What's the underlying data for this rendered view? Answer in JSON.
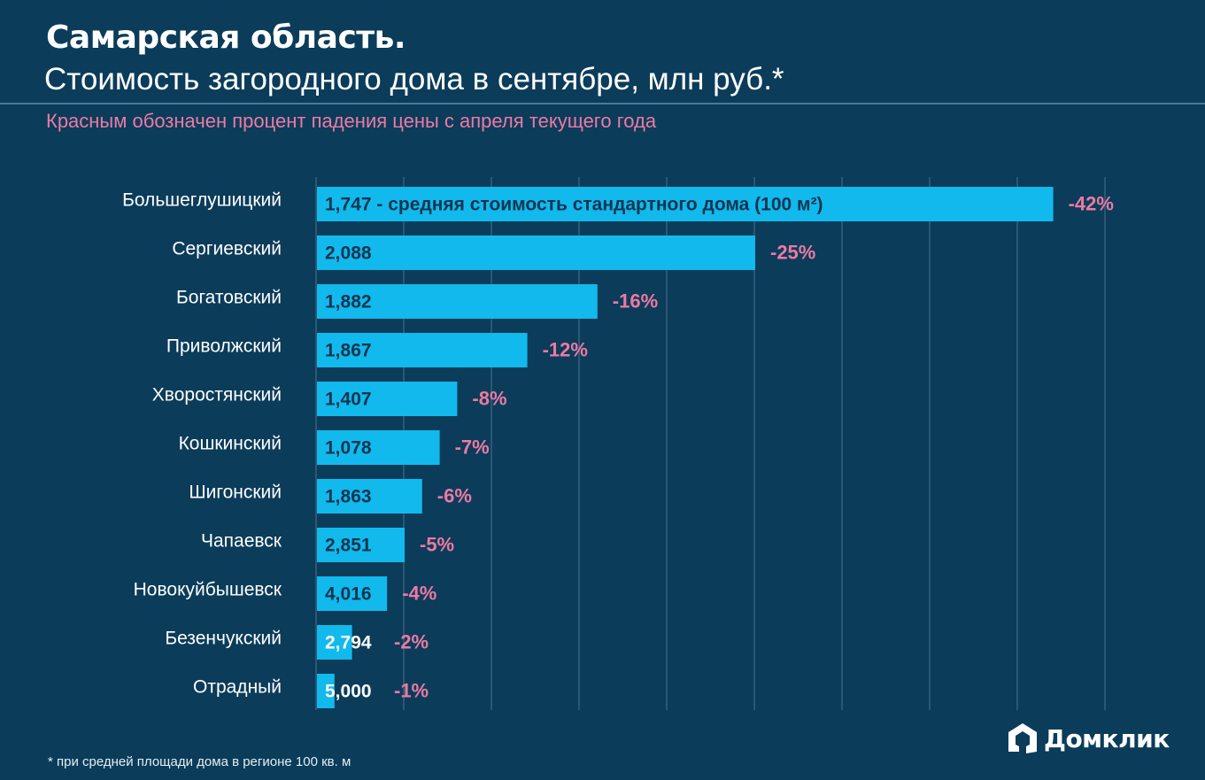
{
  "header": {
    "title_bold": "Самарская область.",
    "title_main": "Стоимость загородного дома в сентябре, млн руб.*",
    "subtitle": "Красным обозначен процент падения цены с апреля текущего года"
  },
  "footnote": "* при средней площади дома в регионе 100 кв. м",
  "logo": {
    "icon": "house-icon",
    "text": "Домклик"
  },
  "colors": {
    "background": "#0b3c5a",
    "bar": "#12b9ec",
    "percent_label": "#ec7aa3",
    "gridline": "#3f6a86"
  },
  "chart_data": {
    "type": "bar",
    "orientation": "horizontal",
    "title": "Стоимость загородного дома в сентябре, млн руб.*",
    "subtitle": "Красным обозначен процент падения цены с апреля текущего года",
    "xlabel": "",
    "ylabel": "",
    "xlim": [
      0,
      45
    ],
    "grid": true,
    "legend": "none",
    "categories": [
      "Большеглушицкий",
      "Сергиевский",
      "Богатовский",
      "Приволжский",
      "Хворостянский",
      "Кошкинский",
      "Шигонский",
      "Чапаевск",
      "Новокуйбышевск",
      "Безенчукский",
      "Отрадный"
    ],
    "series": [
      {
        "name": "Падение цены с апреля, %",
        "values": [
          42,
          25,
          16,
          12,
          8,
          7,
          6,
          5,
          4,
          2,
          1
        ]
      }
    ],
    "price_labels": [
      "1,747 - средняя стоимость стандартного дома (100 м²)",
      "2,088",
      "1,882",
      "1,867",
      "1,407",
      "1,078",
      "1,863",
      "2,851",
      "4,016",
      "2,794",
      "5,000"
    ],
    "prices_mln_rub": [
      1.747,
      2.088,
      1.882,
      1.867,
      1.407,
      1.078,
      1.863,
      2.851,
      4.016,
      2.794,
      5.0
    ],
    "percent_labels": [
      "-42%",
      "-25%",
      "-16%",
      "-12%",
      "-8%",
      "-7%",
      "-6%",
      "-5%",
      "-4%",
      "-2%",
      "-1%"
    ]
  }
}
